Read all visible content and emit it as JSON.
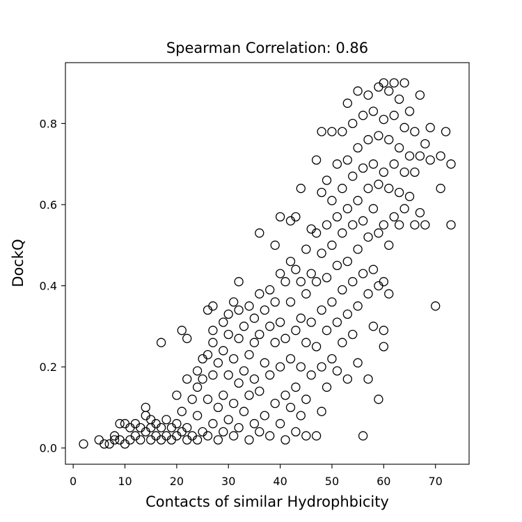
{
  "chart_data": {
    "type": "scatter",
    "title": "Spearman Correlation: 0.86",
    "xlabel": "Contacts of similar Hydrophbicity",
    "ylabel": "DockQ",
    "xlim": [
      -1.5,
      76.5
    ],
    "ylim": [
      -0.04,
      0.95
    ],
    "xticks": [
      0,
      10,
      20,
      30,
      40,
      50,
      60,
      70
    ],
    "yticks": [
      0.0,
      0.2,
      0.4,
      0.6,
      0.8
    ],
    "xtick_labels": [
      "0",
      "10",
      "20",
      "30",
      "40",
      "50",
      "60",
      "70"
    ],
    "ytick_labels": [
      "0.0",
      "0.2",
      "0.4",
      "0.6",
      "0.8"
    ],
    "grid": false,
    "marker": "open-circle",
    "series": [
      {
        "points": [
          [
            2,
            0.01
          ],
          [
            5,
            0.02
          ],
          [
            6,
            0.01
          ],
          [
            7,
            0.01
          ],
          [
            8,
            0.03
          ],
          [
            8,
            0.02
          ],
          [
            9,
            0.06
          ],
          [
            9,
            0.02
          ],
          [
            10,
            0.06
          ],
          [
            10,
            0.01
          ],
          [
            11,
            0.05
          ],
          [
            11,
            0.02
          ],
          [
            12,
            0.06
          ],
          [
            12,
            0.03
          ],
          [
            13,
            0.05
          ],
          [
            13,
            0.02
          ],
          [
            14,
            0.1
          ],
          [
            14,
            0.08
          ],
          [
            14,
            0.04
          ],
          [
            15,
            0.07
          ],
          [
            15,
            0.05
          ],
          [
            15,
            0.02
          ],
          [
            16,
            0.06
          ],
          [
            16,
            0.03
          ],
          [
            17,
            0.26
          ],
          [
            17,
            0.05
          ],
          [
            17,
            0.02
          ],
          [
            18,
            0.07
          ],
          [
            18,
            0.03
          ],
          [
            19,
            0.05
          ],
          [
            19,
            0.02
          ],
          [
            20,
            0.13
          ],
          [
            20,
            0.06
          ],
          [
            20,
            0.03
          ],
          [
            21,
            0.29
          ],
          [
            21,
            0.09
          ],
          [
            21,
            0.04
          ],
          [
            22,
            0.27
          ],
          [
            22,
            0.17
          ],
          [
            22,
            0.05
          ],
          [
            22,
            0.02
          ],
          [
            23,
            0.12
          ],
          [
            23,
            0.03
          ],
          [
            24,
            0.19
          ],
          [
            24,
            0.15
          ],
          [
            24,
            0.08
          ],
          [
            24,
            0.02
          ],
          [
            25,
            0.22
          ],
          [
            25,
            0.17
          ],
          [
            25,
            0.04
          ],
          [
            26,
            0.34
          ],
          [
            26,
            0.23
          ],
          [
            26,
            0.12
          ],
          [
            26,
            0.03
          ],
          [
            27,
            0.35
          ],
          [
            27,
            0.29
          ],
          [
            27,
            0.26
          ],
          [
            27,
            0.18
          ],
          [
            27,
            0.06
          ],
          [
            28,
            0.21
          ],
          [
            28,
            0.1
          ],
          [
            28,
            0.02
          ],
          [
            29,
            0.31
          ],
          [
            29,
            0.24
          ],
          [
            29,
            0.13
          ],
          [
            29,
            0.04
          ],
          [
            30,
            0.33
          ],
          [
            30,
            0.28
          ],
          [
            30,
            0.18
          ],
          [
            30,
            0.07
          ],
          [
            31,
            0.36
          ],
          [
            31,
            0.22
          ],
          [
            31,
            0.11
          ],
          [
            31,
            0.03
          ],
          [
            32,
            0.41
          ],
          [
            32,
            0.34
          ],
          [
            32,
            0.27
          ],
          [
            32,
            0.16
          ],
          [
            32,
            0.05
          ],
          [
            33,
            0.3
          ],
          [
            33,
            0.19
          ],
          [
            33,
            0.09
          ],
          [
            34,
            0.35
          ],
          [
            34,
            0.23
          ],
          [
            34,
            0.13
          ],
          [
            34,
            0.02
          ],
          [
            35,
            0.32
          ],
          [
            35,
            0.26
          ],
          [
            35,
            0.17
          ],
          [
            35,
            0.06
          ],
          [
            36,
            0.53
          ],
          [
            36,
            0.38
          ],
          [
            36,
            0.28
          ],
          [
            36,
            0.14
          ],
          [
            36,
            0.04
          ],
          [
            37,
            0.34
          ],
          [
            37,
            0.21
          ],
          [
            37,
            0.08
          ],
          [
            38,
            0.39
          ],
          [
            38,
            0.3
          ],
          [
            38,
            0.18
          ],
          [
            38,
            0.03
          ],
          [
            39,
            0.5
          ],
          [
            39,
            0.36
          ],
          [
            39,
            0.26
          ],
          [
            39,
            0.11
          ],
          [
            40,
            0.57
          ],
          [
            40,
            0.43
          ],
          [
            40,
            0.31
          ],
          [
            40,
            0.2
          ],
          [
            40,
            0.06
          ],
          [
            41,
            0.41
          ],
          [
            41,
            0.27
          ],
          [
            41,
            0.13
          ],
          [
            41,
            0.02
          ],
          [
            42,
            0.56
          ],
          [
            42,
            0.46
          ],
          [
            42,
            0.36
          ],
          [
            42,
            0.22
          ],
          [
            42,
            0.1
          ],
          [
            43,
            0.57
          ],
          [
            43,
            0.44
          ],
          [
            43,
            0.29
          ],
          [
            43,
            0.15
          ],
          [
            43,
            0.04
          ],
          [
            44,
            0.64
          ],
          [
            44,
            0.41
          ],
          [
            44,
            0.32
          ],
          [
            44,
            0.2
          ],
          [
            44,
            0.08
          ],
          [
            45,
            0.49
          ],
          [
            45,
            0.38
          ],
          [
            45,
            0.26
          ],
          [
            45,
            0.12
          ],
          [
            45,
            0.03
          ],
          [
            46,
            0.54
          ],
          [
            46,
            0.43
          ],
          [
            46,
            0.31
          ],
          [
            46,
            0.18
          ],
          [
            47,
            0.71
          ],
          [
            47,
            0.53
          ],
          [
            47,
            0.41
          ],
          [
            47,
            0.25
          ],
          [
            47,
            0.03
          ],
          [
            48,
            0.78
          ],
          [
            48,
            0.63
          ],
          [
            48,
            0.48
          ],
          [
            48,
            0.34
          ],
          [
            48,
            0.2
          ],
          [
            48,
            0.09
          ],
          [
            49,
            0.66
          ],
          [
            49,
            0.55
          ],
          [
            49,
            0.42
          ],
          [
            49,
            0.29
          ],
          [
            49,
            0.15
          ],
          [
            50,
            0.78
          ],
          [
            50,
            0.61
          ],
          [
            50,
            0.5
          ],
          [
            50,
            0.36
          ],
          [
            50,
            0.22
          ],
          [
            51,
            0.7
          ],
          [
            51,
            0.57
          ],
          [
            51,
            0.45
          ],
          [
            51,
            0.31
          ],
          [
            51,
            0.19
          ],
          [
            52,
            0.78
          ],
          [
            52,
            0.64
          ],
          [
            52,
            0.53
          ],
          [
            52,
            0.39
          ],
          [
            52,
            0.26
          ],
          [
            53,
            0.85
          ],
          [
            53,
            0.71
          ],
          [
            53,
            0.59
          ],
          [
            53,
            0.46
          ],
          [
            53,
            0.33
          ],
          [
            53,
            0.17
          ],
          [
            54,
            0.8
          ],
          [
            54,
            0.67
          ],
          [
            54,
            0.55
          ],
          [
            54,
            0.41
          ],
          [
            54,
            0.28
          ],
          [
            55,
            0.88
          ],
          [
            55,
            0.74
          ],
          [
            55,
            0.61
          ],
          [
            55,
            0.49
          ],
          [
            55,
            0.35
          ],
          [
            55,
            0.21
          ],
          [
            56,
            0.82
          ],
          [
            56,
            0.69
          ],
          [
            56,
            0.56
          ],
          [
            56,
            0.43
          ],
          [
            56,
            0.03
          ],
          [
            57,
            0.87
          ],
          [
            57,
            0.76
          ],
          [
            57,
            0.64
          ],
          [
            57,
            0.52
          ],
          [
            57,
            0.38
          ],
          [
            57,
            0.17
          ],
          [
            58,
            0.83
          ],
          [
            58,
            0.7
          ],
          [
            58,
            0.59
          ],
          [
            58,
            0.44
          ],
          [
            58,
            0.3
          ],
          [
            59,
            0.89
          ],
          [
            59,
            0.77
          ],
          [
            59,
            0.65
          ],
          [
            59,
            0.53
          ],
          [
            59,
            0.4
          ],
          [
            59,
            0.12
          ],
          [
            60,
            0.9
          ],
          [
            60,
            0.81
          ],
          [
            60,
            0.68
          ],
          [
            60,
            0.55
          ],
          [
            60,
            0.41
          ],
          [
            60,
            0.29
          ],
          [
            60,
            0.25
          ],
          [
            61,
            0.88
          ],
          [
            61,
            0.76
          ],
          [
            61,
            0.64
          ],
          [
            61,
            0.5
          ],
          [
            61,
            0.38
          ],
          [
            62,
            0.9
          ],
          [
            62,
            0.82
          ],
          [
            62,
            0.7
          ],
          [
            62,
            0.57
          ],
          [
            63,
            0.86
          ],
          [
            63,
            0.74
          ],
          [
            63,
            0.63
          ],
          [
            63,
            0.55
          ],
          [
            64,
            0.9
          ],
          [
            64,
            0.79
          ],
          [
            64,
            0.68
          ],
          [
            64,
            0.59
          ],
          [
            65,
            0.83
          ],
          [
            65,
            0.72
          ],
          [
            65,
            0.62
          ],
          [
            66,
            0.78
          ],
          [
            66,
            0.68
          ],
          [
            66,
            0.55
          ],
          [
            67,
            0.87
          ],
          [
            67,
            0.72
          ],
          [
            67,
            0.58
          ],
          [
            68,
            0.75
          ],
          [
            68,
            0.55
          ],
          [
            69,
            0.79
          ],
          [
            69,
            0.71
          ],
          [
            70,
            0.35
          ],
          [
            71,
            0.72
          ],
          [
            71,
            0.64
          ],
          [
            72,
            0.78
          ],
          [
            73,
            0.7
          ],
          [
            73,
            0.55
          ]
        ]
      }
    ]
  }
}
